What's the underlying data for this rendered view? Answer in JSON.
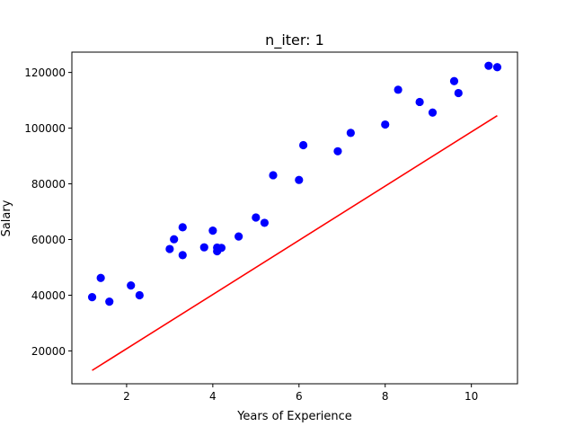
{
  "chart_data": {
    "type": "scatter",
    "title": "n_iter: 1",
    "xlabel": "Years of Experience",
    "ylabel": "Salary",
    "xlim": [
      0.73,
      11.07
    ],
    "ylim": [
      8200,
      127300
    ],
    "xticks": [
      2,
      4,
      6,
      8,
      10
    ],
    "yticks": [
      20000,
      40000,
      60000,
      80000,
      100000,
      120000
    ],
    "grid": false,
    "series": [
      {
        "kind": "scatter",
        "color": "#0000ff",
        "points": [
          [
            1.2,
            39300
          ],
          [
            1.4,
            46200
          ],
          [
            1.6,
            37700
          ],
          [
            2.1,
            43500
          ],
          [
            2.3,
            40000
          ],
          [
            3.0,
            56600
          ],
          [
            3.1,
            60100
          ],
          [
            3.3,
            54400
          ],
          [
            3.3,
            64400
          ],
          [
            3.8,
            57200
          ],
          [
            4.0,
            63200
          ],
          [
            4.1,
            55800
          ],
          [
            4.1,
            57100
          ],
          [
            4.2,
            57000
          ],
          [
            4.6,
            61100
          ],
          [
            5.0,
            67900
          ],
          [
            5.2,
            66000
          ],
          [
            5.4,
            83100
          ],
          [
            6.0,
            81400
          ],
          [
            6.1,
            93900
          ],
          [
            6.9,
            91700
          ],
          [
            7.2,
            98300
          ],
          [
            8.0,
            101300
          ],
          [
            8.3,
            113800
          ],
          [
            8.8,
            109400
          ],
          [
            9.1,
            105600
          ],
          [
            9.6,
            116900
          ],
          [
            9.7,
            112600
          ],
          [
            10.4,
            122400
          ],
          [
            10.6,
            121900
          ]
        ]
      },
      {
        "kind": "line",
        "color": "#ff0000",
        "points": [
          [
            1.2,
            13000
          ],
          [
            10.6,
            104500
          ]
        ]
      }
    ]
  }
}
